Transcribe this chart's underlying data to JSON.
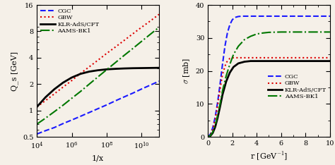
{
  "left_plot": {
    "xlabel": "1/x",
    "ylabel": "Q_s [GeV]",
    "xmin": 10000,
    "xmax": 100000000000,
    "ymin": 0.5,
    "ymax": 16,
    "yticks": [
      0.5,
      1,
      2,
      4,
      8,
      16
    ],
    "ytick_labels": [
      "0.5",
      "1",
      "2",
      "4",
      "8",
      "16"
    ],
    "legend_labels": [
      "CGC",
      "GBW",
      "KLR-AdS/CFT",
      "AAMS-BK1"
    ],
    "colors": [
      "#1a1aff",
      "#dd0000",
      "#000000",
      "#007700"
    ],
    "styles": [
      "--",
      ":",
      "-",
      "-."
    ],
    "linewidths": [
      1.5,
      1.5,
      2.0,
      1.5
    ],
    "CGC_x": [
      10000,
      31623,
      100000,
      316228,
      1000000,
      3162278,
      10000000,
      31622777,
      100000000,
      316227766,
      1000000000,
      3162277660,
      10000000000,
      31622776602,
      100000000000
    ],
    "CGC_y": [
      0.54,
      0.59,
      0.64,
      0.71,
      0.78,
      0.86,
      0.95,
      1.05,
      1.16,
      1.29,
      1.43,
      1.58,
      1.76,
      1.95,
      2.16
    ],
    "GBW_x": [
      10000,
      31623,
      100000,
      316228,
      1000000,
      3162278,
      10000000,
      31622777,
      100000000,
      316227766,
      1000000000,
      3162277660,
      10000000000,
      31622776602,
      100000000000
    ],
    "GBW_y": [
      1.1,
      1.3,
      1.55,
      1.85,
      2.2,
      2.65,
      3.15,
      3.75,
      4.48,
      5.3,
      6.3,
      7.5,
      8.9,
      10.5,
      12.5
    ],
    "KLR_x": [
      10000,
      31623,
      100000,
      316228,
      1000000,
      3162278,
      10000000,
      31622777,
      100000000,
      316227766,
      1000000000,
      3162277660,
      10000000000,
      31622776602,
      100000000000
    ],
    "KLR_y": [
      1.1,
      1.42,
      1.75,
      2.08,
      2.38,
      2.62,
      2.78,
      2.88,
      2.95,
      2.99,
      3.02,
      3.04,
      3.05,
      3.06,
      3.07
    ],
    "AAMS_x": [
      10000,
      31623,
      100000,
      316228,
      1000000,
      3162278,
      10000000,
      31622777,
      100000000,
      316227766,
      1000000000,
      3162277660,
      10000000000,
      31622776602,
      100000000000
    ],
    "AAMS_y": [
      0.7,
      0.82,
      0.97,
      1.15,
      1.38,
      1.65,
      2.0,
      2.42,
      2.92,
      3.52,
      4.25,
      5.1,
      6.15,
      7.4,
      8.9
    ]
  },
  "right_plot": {
    "xlabel": "r [GeV$^{-1}$]",
    "ylabel": "$\\sigma$ [mb]",
    "xmin": 0,
    "xmax": 10,
    "ymin": 0,
    "ymax": 40,
    "xticks": [
      0,
      2,
      4,
      6,
      8,
      10
    ],
    "yticks": [
      0,
      10,
      20,
      30,
      40
    ],
    "legend_labels": [
      "CGC",
      "GBW",
      "KLR-AdS/CFT",
      "AAMS-BK1"
    ],
    "colors": [
      "#1a1aff",
      "#dd0000",
      "#000000",
      "#007700"
    ],
    "styles": [
      "--",
      ":",
      "-",
      "-."
    ],
    "linewidths": [
      1.5,
      1.5,
      2.0,
      1.5
    ],
    "CGC_x": [
      0.0,
      0.2,
      0.4,
      0.6,
      0.8,
      1.0,
      1.2,
      1.4,
      1.6,
      1.8,
      2.0,
      2.2,
      2.5,
      2.8,
      3.2,
      3.8,
      4.5,
      5.5,
      7.0,
      10.0
    ],
    "CGC_y": [
      0.0,
      0.8,
      2.8,
      6.0,
      10.5,
      16.0,
      22.0,
      27.5,
      31.5,
      34.0,
      35.5,
      36.2,
      36.5,
      36.6,
      36.6,
      36.6,
      36.6,
      36.6,
      36.6,
      36.6
    ],
    "GBW_x": [
      0.0,
      0.2,
      0.4,
      0.6,
      0.8,
      1.0,
      1.2,
      1.5,
      1.8,
      2.1,
      2.5,
      3.0,
      4.0,
      5.0,
      7.0,
      10.0
    ],
    "GBW_y": [
      0.0,
      0.6,
      2.2,
      5.2,
      9.5,
      14.5,
      19.0,
      22.5,
      23.8,
      24.0,
      24.0,
      24.0,
      24.0,
      24.0,
      24.0,
      24.0
    ],
    "KLR_x": [
      0.0,
      0.2,
      0.4,
      0.6,
      0.8,
      1.0,
      1.2,
      1.5,
      1.8,
      2.1,
      2.5,
      3.0,
      3.5,
      4.0,
      5.0,
      6.0,
      7.0,
      8.0,
      9.0,
      10.0
    ],
    "KLR_y": [
      0.0,
      0.3,
      1.2,
      3.0,
      5.8,
      9.2,
      12.8,
      16.8,
      19.5,
      21.2,
      22.3,
      22.8,
      23.0,
      23.0,
      23.0,
      23.0,
      23.0,
      23.0,
      23.0,
      23.0
    ],
    "AAMS_x": [
      0.0,
      0.2,
      0.4,
      0.6,
      0.8,
      1.0,
      1.2,
      1.5,
      1.8,
      2.1,
      2.5,
      3.0,
      3.5,
      4.0,
      4.5,
      5.0,
      6.0,
      7.0,
      8.0,
      9.0,
      10.0
    ],
    "AAMS_y": [
      0.0,
      0.4,
      1.5,
      3.5,
      6.5,
      10.0,
      14.0,
      18.5,
      22.0,
      25.0,
      27.5,
      29.5,
      30.5,
      31.2,
      31.5,
      31.7,
      31.8,
      31.8,
      31.8,
      31.8,
      31.8
    ]
  },
  "bg_color": "#f5f0e8",
  "fig_width": 4.74,
  "fig_height": 2.34
}
